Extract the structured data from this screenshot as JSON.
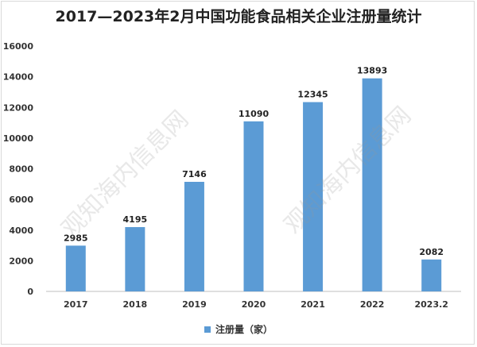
{
  "chart_data": {
    "type": "bar",
    "title": "2017—2023年2月中国功能食品相关企业注册量统计",
    "categories": [
      "2017",
      "2018",
      "2019",
      "2020",
      "2021",
      "2022",
      "2023.2"
    ],
    "series": [
      {
        "name": "注册量（家）",
        "values": [
          2985,
          4195,
          7146,
          11090,
          12345,
          13893,
          2082
        ],
        "color": "#5b9bd5"
      }
    ],
    "ylim": [
      0,
      16000
    ],
    "yticks": [
      0,
      2000,
      4000,
      6000,
      8000,
      10000,
      12000,
      14000,
      16000
    ],
    "grid": false,
    "legend_position": "bottom",
    "data_labels": true
  },
  "watermark": {
    "text": "观知海内信息网"
  }
}
